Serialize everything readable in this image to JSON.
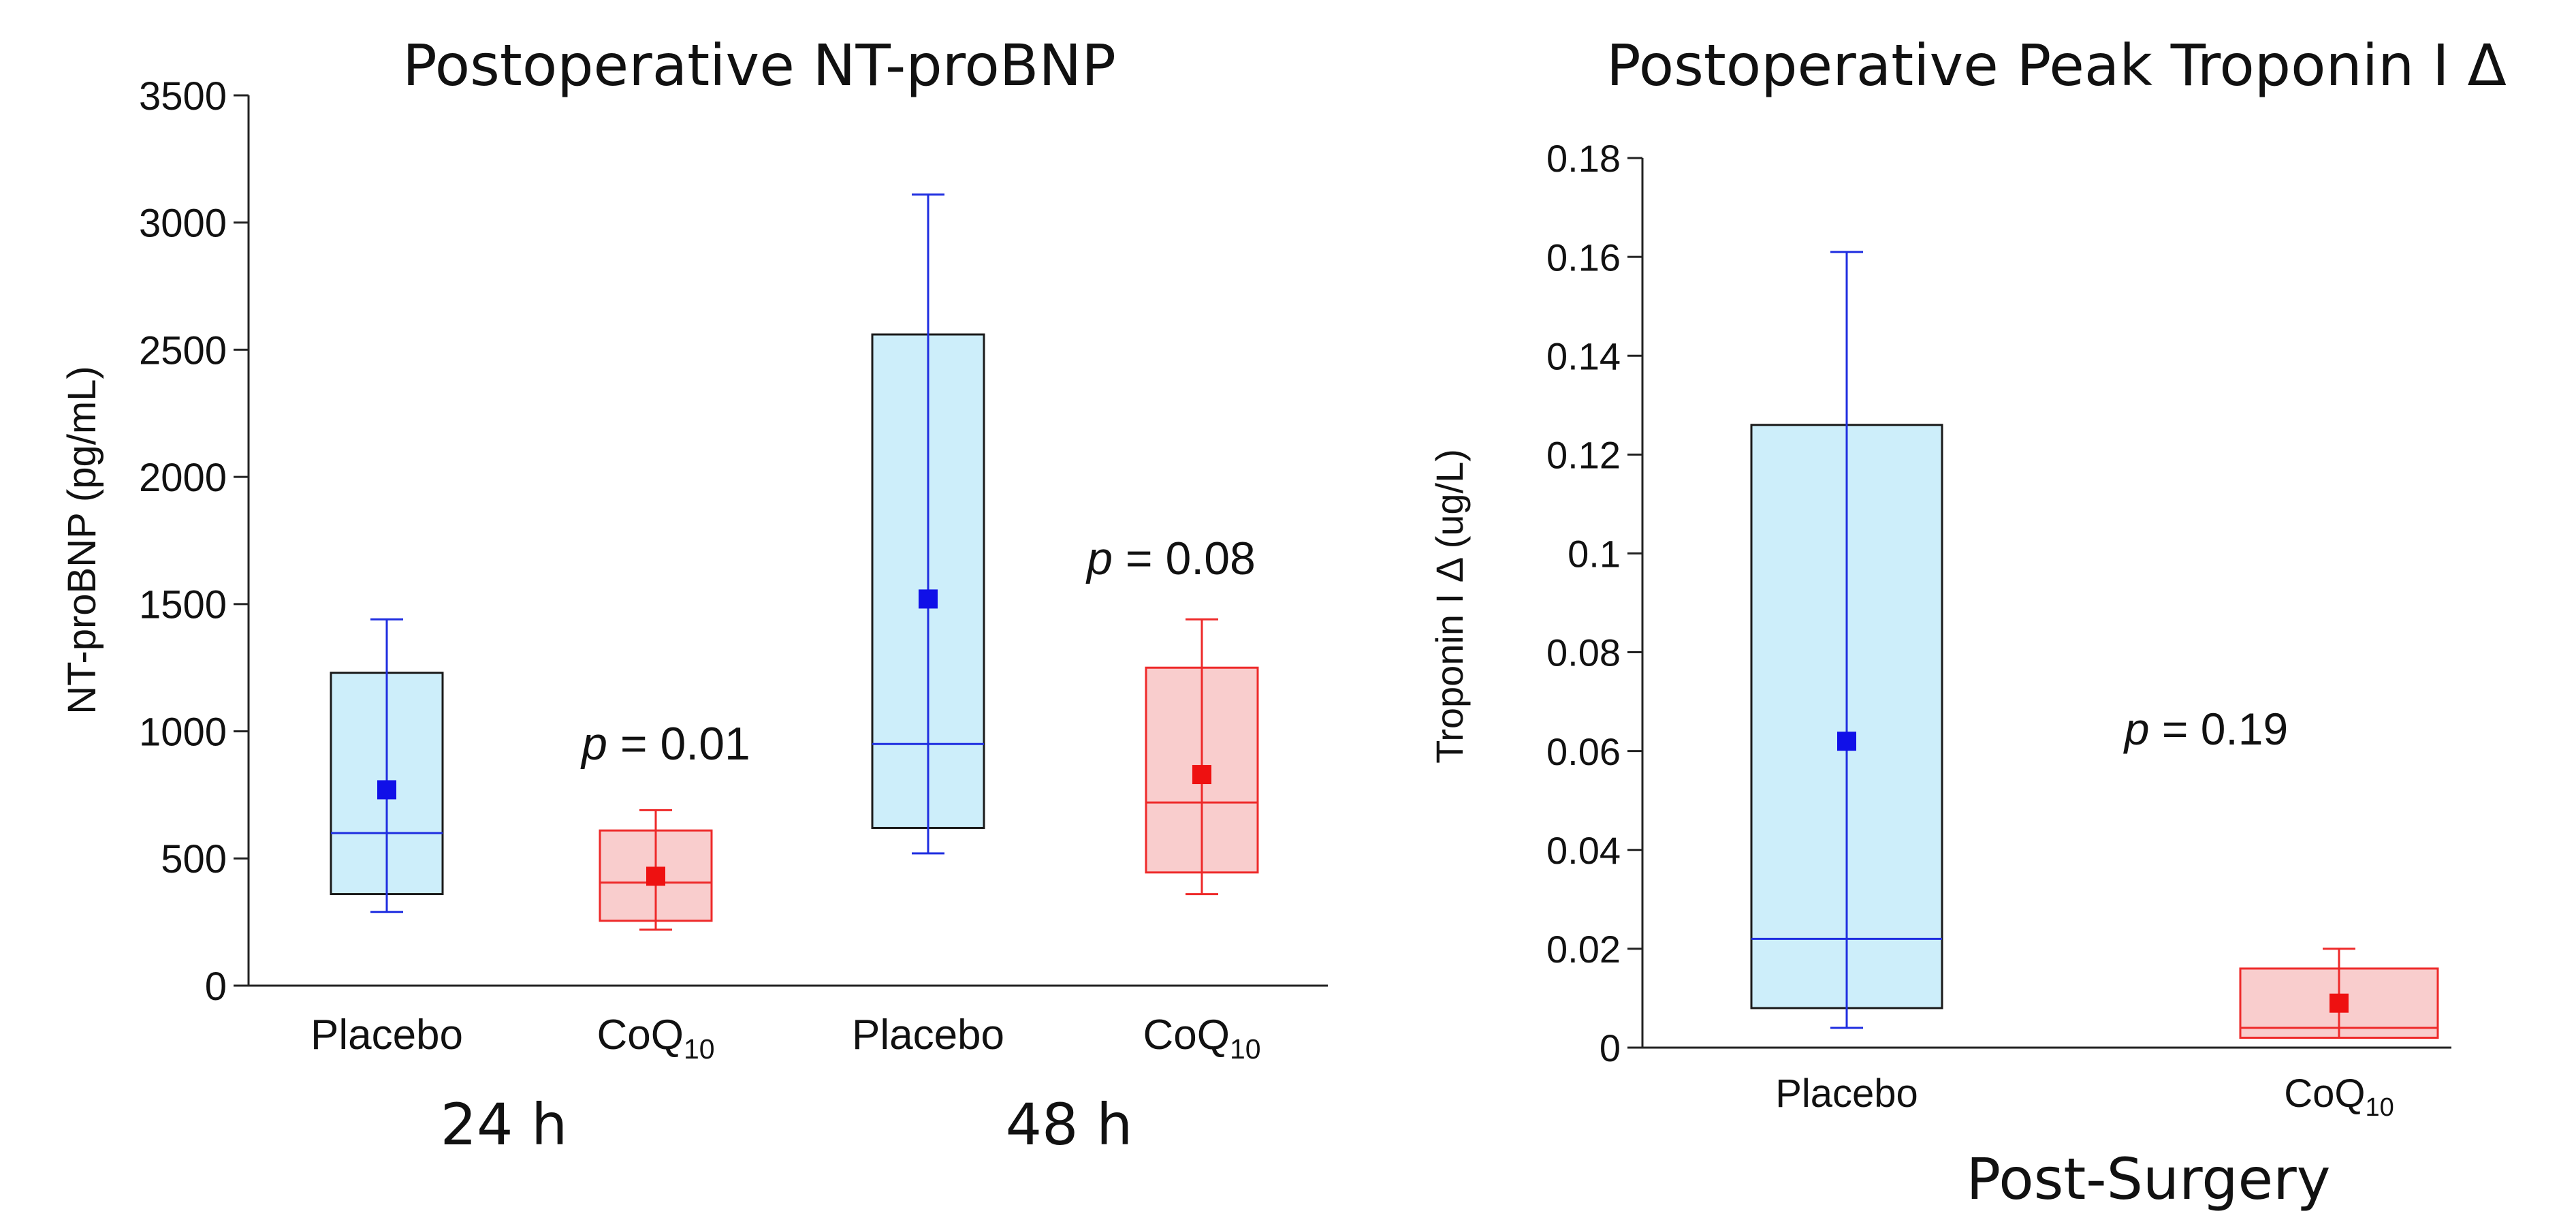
{
  "colors": {
    "placebo_fill": "#cdeefa",
    "placebo_line": "#1f2ee0",
    "placebo_mean": "#1010e8",
    "coq10_fill": "#f9cdcd",
    "coq10_line": "#ee2a2a",
    "coq10_mean": "#ee1111",
    "axis": "#222222"
  },
  "chart_data": [
    {
      "type": "box",
      "title": "Postoperative NT-proBNP",
      "ylabel": "NT-proBNP (pg/mL)",
      "ylim": [
        0,
        3500
      ],
      "yticks": [
        "0",
        "500",
        "1000",
        "1500",
        "2000",
        "2500",
        "3000",
        "3500"
      ],
      "groups": [
        {
          "label": "24 h",
          "p_label": "p",
          "p_value": "= 0.01",
          "boxes": [
            {
              "name": "Placebo",
              "name_main": "Placebo",
              "name_sub": "",
              "whisker_low": 290,
              "q1": 360,
              "median": 600,
              "q3": 1230,
              "whisker_high": 1440,
              "mean": 770
            },
            {
              "name": "CoQ10",
              "name_main": "CoQ",
              "name_sub": "10",
              "whisker_low": 220,
              "q1": 255,
              "median": 405,
              "q3": 610,
              "whisker_high": 690,
              "mean": 430
            }
          ]
        },
        {
          "label": "48 h",
          "p_label": "p",
          "p_value": "= 0.08",
          "boxes": [
            {
              "name": "Placebo",
              "name_main": "Placebo",
              "name_sub": "",
              "whisker_low": 520,
              "q1": 620,
              "median": 950,
              "q3": 2560,
              "whisker_high": 3110,
              "mean": 1520
            },
            {
              "name": "CoQ10",
              "name_main": "CoQ",
              "name_sub": "10",
              "whisker_low": 360,
              "q1": 445,
              "median": 720,
              "q3": 1250,
              "whisker_high": 1440,
              "mean": 830
            }
          ]
        }
      ]
    },
    {
      "type": "box",
      "title": "Postoperative Peak Troponin I Δ",
      "ylabel": "Troponin I Δ (ug/L)",
      "xlabel": "Post-Surgery",
      "ylim": [
        0,
        0.18
      ],
      "yticks": [
        "0",
        "0.02",
        "0.04",
        "0.06",
        "0.08",
        "0.1",
        "0.12",
        "0.14",
        "0.16",
        "0.18"
      ],
      "p_label": "p",
      "p_value": "= 0.19",
      "boxes": [
        {
          "name": "Placebo",
          "name_main": "Placebo",
          "name_sub": "",
          "whisker_low": 0.004,
          "q1": 0.008,
          "median": 0.022,
          "q3": 0.126,
          "whisker_high": 0.161,
          "mean": 0.062
        },
        {
          "name": "CoQ10",
          "name_main": "CoQ",
          "name_sub": "10",
          "whisker_low": 0.002,
          "q1": 0.002,
          "median": 0.004,
          "q3": 0.016,
          "whisker_high": 0.02,
          "mean": 0.009
        }
      ]
    }
  ]
}
